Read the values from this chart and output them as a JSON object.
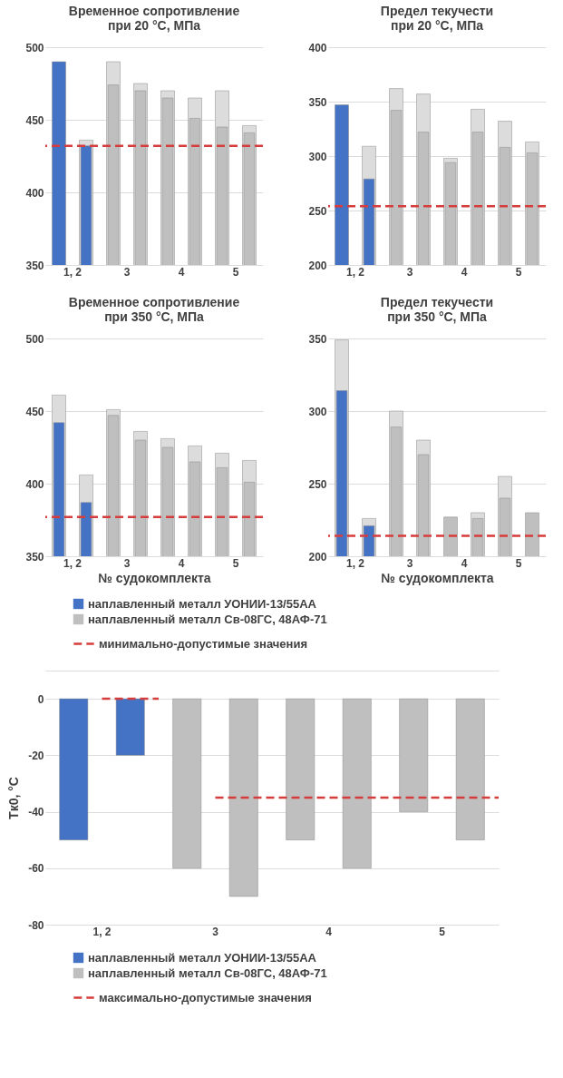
{
  "chart_data": [
    {
      "type": "bar",
      "title": "Временное сопротивление\nпри 20 °C, МПа",
      "categories": [
        "1, 2",
        null,
        "3",
        null,
        "4",
        null,
        "5",
        null
      ],
      "grid": "y",
      "ylim": [
        350,
        500
      ],
      "yticks": [
        350,
        400,
        450,
        500
      ],
      "series": [
        {
          "color": "#dcdcdc",
          "values": [
            null,
            436,
            490,
            475,
            470,
            465,
            470,
            446
          ]
        },
        {
          "colors": [
            "#4472c4",
            "#4472c4",
            "#bfbfbf",
            "#bfbfbf",
            "#bfbfbf",
            "#bfbfbf",
            "#bfbfbf",
            "#bfbfbf"
          ],
          "values": [
            490,
            432,
            474,
            470,
            465,
            451,
            445,
            441
          ]
        }
      ],
      "ref_lines": [
        {
          "axis": "y",
          "value": 432,
          "color": "#d63c3c",
          "line_style": "dashed"
        }
      ]
    },
    {
      "type": "bar",
      "title": "Предел текучести\nпри 20 °C, МПа",
      "categories": [
        "1, 2",
        null,
        "3",
        null,
        "4",
        null,
        "5",
        null
      ],
      "grid": "y",
      "ylim": [
        200,
        400
      ],
      "yticks": [
        200,
        250,
        300,
        350,
        400
      ],
      "series": [
        {
          "color": "#dcdcdc",
          "values": [
            null,
            309,
            362,
            357,
            298,
            343,
            332,
            313
          ]
        },
        {
          "colors": [
            "#4472c4",
            "#4472c4",
            "#bfbfbf",
            "#bfbfbf",
            "#bfbfbf",
            "#bfbfbf",
            "#bfbfbf",
            "#bfbfbf"
          ],
          "values": [
            347,
            279,
            342,
            322,
            294,
            322,
            308,
            303
          ]
        }
      ],
      "ref_lines": [
        {
          "axis": "y",
          "value": 254,
          "color": "#d63c3c",
          "line_style": "dashed"
        }
      ]
    },
    {
      "type": "bar",
      "title": "Временное сопротивление\nпри 350 °C, МПа",
      "xlabel": "№ судокомплекта",
      "categories": [
        "1, 2",
        null,
        "3",
        null,
        "4",
        null,
        "5",
        null
      ],
      "grid": "y",
      "legend": "bottom",
      "ylim": [
        350,
        500
      ],
      "yticks": [
        350,
        400,
        450,
        500
      ],
      "series": [
        {
          "color": "#dcdcdc",
          "values": [
            461,
            406,
            451,
            436,
            431,
            426,
            421,
            416
          ]
        },
        {
          "name": "наплавленный металл УОНИИ-13/55АА",
          "color": "#4472c4",
          "values": [
            442,
            387,
            null,
            null,
            null,
            null,
            null,
            null
          ]
        },
        {
          "name": "наплавленный металл Св-08ГС, 48АФ-71",
          "color": "#bfbfbf",
          "values": [
            null,
            null,
            447,
            430,
            425,
            415,
            411,
            401
          ]
        }
      ],
      "ref_lines": [
        {
          "axis": "y",
          "value": 377,
          "label": "минимально-допустимые значения",
          "color": "#d63c3c",
          "line_style": "dashed"
        }
      ]
    },
    {
      "type": "bar",
      "title": "Предел текучести\nпри 350 °C, МПа",
      "xlabel": "№ судокомплекта",
      "categories": [
        "1, 2",
        null,
        "3",
        null,
        "4",
        null,
        "5",
        null
      ],
      "grid": "y",
      "ylim": [
        200,
        350
      ],
      "yticks": [
        200,
        250,
        300,
        350
      ],
      "series": [
        {
          "color": "#dcdcdc",
          "values": [
            349,
            226,
            300,
            280,
            null,
            230,
            255,
            null
          ]
        },
        {
          "colors": [
            "#4472c4",
            "#4472c4",
            "#bfbfbf",
            "#bfbfbf",
            "#bfbfbf",
            "#bfbfbf",
            "#bfbfbf",
            "#bfbfbf"
          ],
          "values": [
            314,
            221,
            289,
            270,
            227,
            226,
            240,
            230
          ]
        }
      ],
      "ref_lines": [
        {
          "axis": "y",
          "value": 214,
          "color": "#d63c3c",
          "line_style": "dashed"
        }
      ]
    },
    {
      "type": "bar",
      "ylabel": "Tк0, °C",
      "categories": [
        "1, 2",
        null,
        "3",
        null,
        "4",
        null,
        "5",
        null
      ],
      "grid": "y",
      "legend": "bottom",
      "ylim": [
        -80,
        10
      ],
      "yticks": [
        -80,
        -60,
        -40,
        -20,
        0,
        {
          "value": 10,
          "label": null
        }
      ],
      "series": [
        {
          "name": "наплавленный металл УОНИИ-13/55АА",
          "color": "#4472c4",
          "values": [
            -50,
            -20,
            null,
            null,
            null,
            null,
            null,
            null
          ]
        },
        {
          "name": "наплавленный металл Св-08ГС, 48АФ-71",
          "color": "#bfbfbf",
          "values": [
            null,
            null,
            -60,
            -70,
            -50,
            -60,
            -40,
            -50
          ]
        },
        {
          "type": "line",
          "color": "#d63c3c",
          "line_style": "dashed",
          "values": [
            0,
            0,
            null,
            null,
            null,
            null,
            null,
            null
          ]
        },
        {
          "type": "line",
          "name": "максимально-допустимые значения",
          "color": "#d63c3c",
          "line_style": "dashed",
          "values": [
            null,
            null,
            -35,
            -35,
            -35,
            -35,
            -35,
            -35
          ]
        }
      ]
    }
  ]
}
